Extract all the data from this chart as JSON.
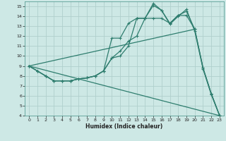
{
  "xlabel": "Humidex (Indice chaleur)",
  "background_color": "#cde8e5",
  "grid_color": "#b0d0cc",
  "line_color": "#2e7d6e",
  "xlim": [
    -0.5,
    23.5
  ],
  "ylim": [
    4,
    15.5
  ],
  "xticks": [
    0,
    1,
    2,
    3,
    4,
    5,
    6,
    7,
    8,
    9,
    10,
    11,
    12,
    13,
    14,
    15,
    16,
    17,
    18,
    19,
    20,
    21,
    22,
    23
  ],
  "yticks": [
    4,
    5,
    6,
    7,
    8,
    9,
    10,
    11,
    12,
    13,
    14,
    15
  ],
  "series1_x": [
    0,
    1,
    2,
    3,
    4,
    5,
    6,
    7,
    8,
    9,
    10,
    11,
    12,
    13,
    14,
    15,
    16,
    17,
    18,
    19,
    20,
    21,
    22,
    23
  ],
  "series1_y": [
    9,
    8.5,
    8.0,
    7.5,
    7.5,
    7.5,
    7.7,
    7.8,
    8.0,
    8.5,
    9.8,
    10.0,
    11.0,
    13.8,
    13.8,
    15.3,
    14.6,
    13.3,
    14.1,
    14.5,
    12.7,
    8.8,
    6.2,
    4.0
  ],
  "series2_x": [
    0,
    1,
    2,
    3,
    4,
    5,
    6,
    7,
    8,
    9,
    10,
    11,
    12,
    13,
    14,
    15,
    16,
    17,
    18,
    19,
    20,
    21,
    22,
    23
  ],
  "series2_y": [
    9,
    8.5,
    8.0,
    7.5,
    7.5,
    7.5,
    7.7,
    7.8,
    8.0,
    8.5,
    11.8,
    11.8,
    13.3,
    13.8,
    13.8,
    15.1,
    14.6,
    13.2,
    14.0,
    14.7,
    12.5,
    8.7,
    6.1,
    4.0
  ],
  "series3_x": [
    0,
    1,
    2,
    3,
    4,
    5,
    6,
    7,
    8,
    9,
    10,
    11,
    12,
    13,
    14,
    15,
    16,
    17,
    18,
    19,
    20,
    21,
    22,
    23
  ],
  "series3_y": [
    9.0,
    8.5,
    8.0,
    7.5,
    7.5,
    7.5,
    7.7,
    7.8,
    8.0,
    8.5,
    9.8,
    10.5,
    11.5,
    12.0,
    13.8,
    13.8,
    13.8,
    13.3,
    14.1,
    14.1,
    12.7,
    8.8,
    6.2,
    4.0
  ],
  "series4_x": [
    0,
    23
  ],
  "series4_y": [
    9.0,
    4.0
  ],
  "series5_x": [
    0,
    20
  ],
  "series5_y": [
    9.0,
    12.7
  ]
}
